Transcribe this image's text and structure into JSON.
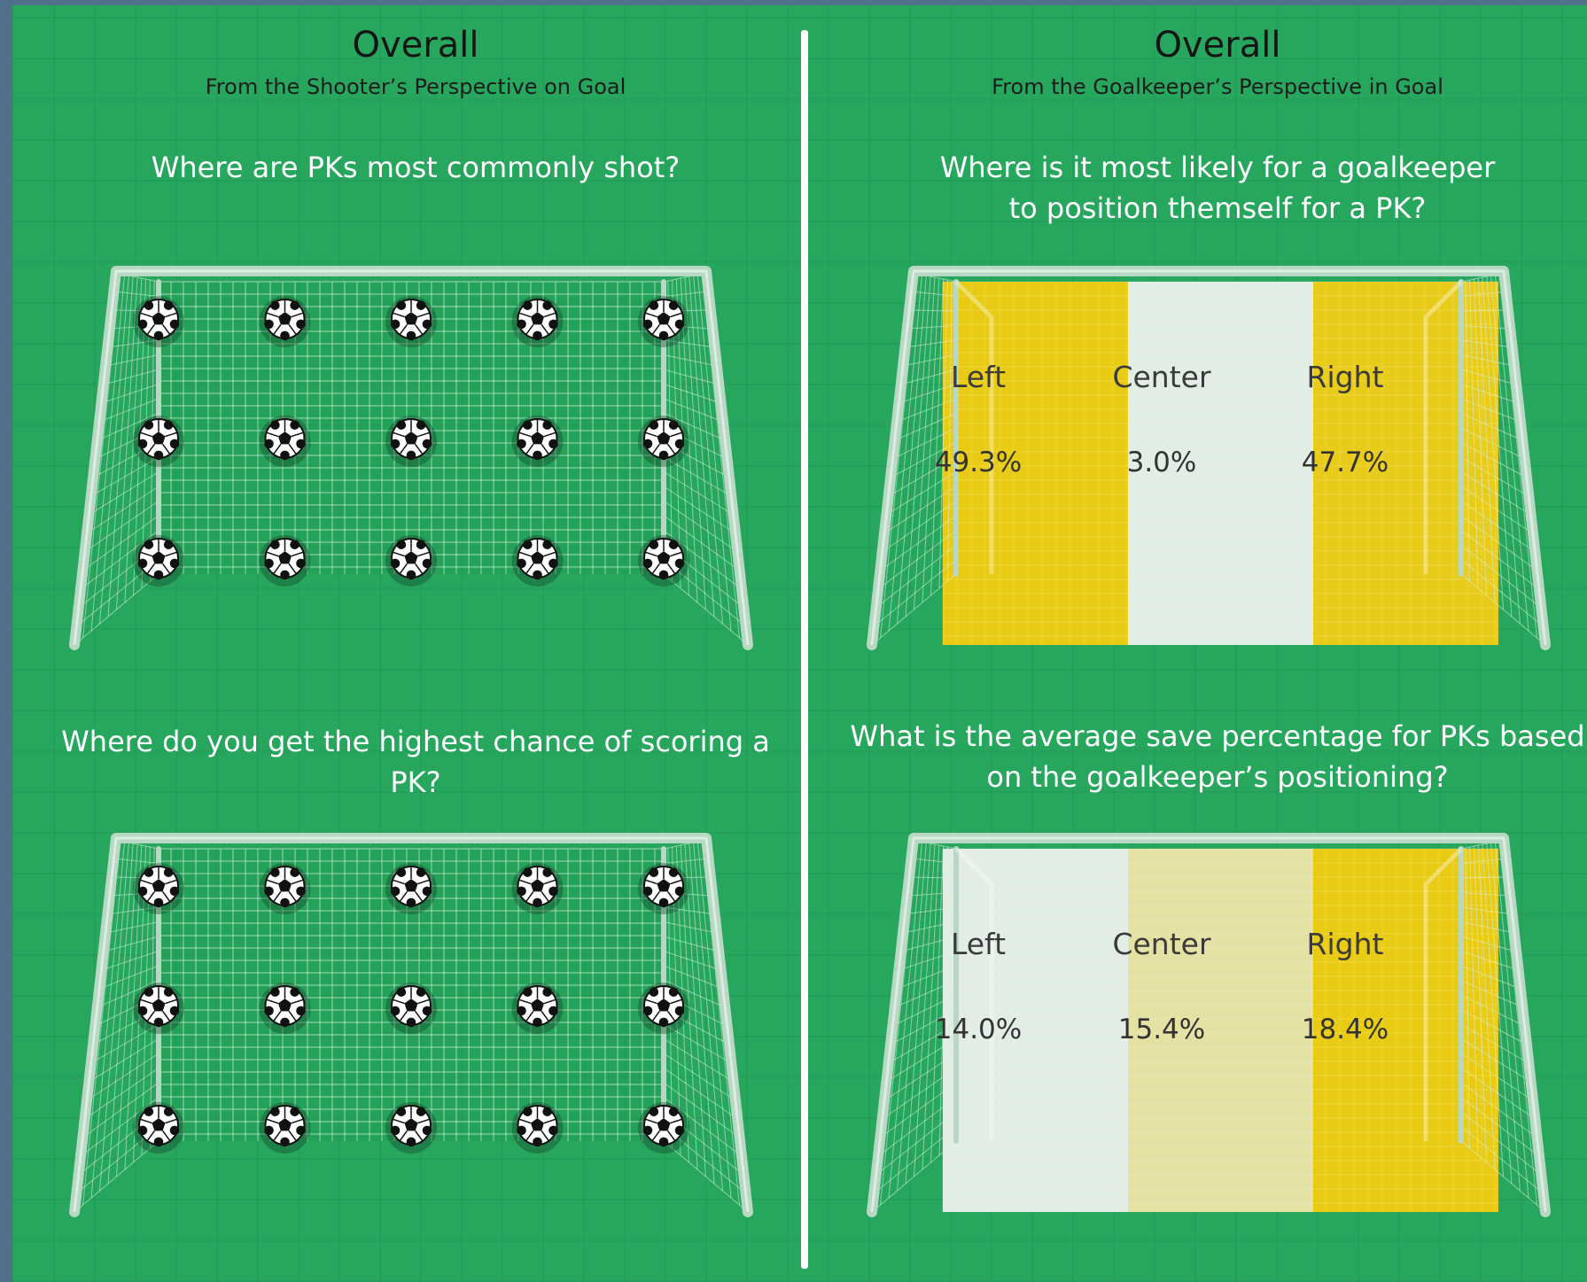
{
  "colors": {
    "field": "#27a75e",
    "divider": "#ffffff",
    "post": "#b8d8c4",
    "net_line": "#d9f1e0",
    "low": "#e2ede6",
    "high": "#e8cb12"
  },
  "left_panel": {
    "title": "Overall",
    "subtitle": "From the Shooter’s Perspective on Goal",
    "q1": "Where are PKs most commonly shot?",
    "q2": "Where do you get the highest chance of scoring a PK?"
  },
  "right_panel": {
    "title": "Overall",
    "subtitle": "From the Goalkeeper’s Perspective in Goal",
    "q1_line1": "Where is it most likely for a goalkeeper",
    "q1_line2": "to position themself for a PK?",
    "q2_line1": "What is the average save percentage for PKs based",
    "q2_line2": "on the goalkeeper’s positioning?"
  },
  "chart_data": [
    {
      "type": "heatmap",
      "title": "Where are PKs most commonly shot?",
      "rows": 3,
      "cols": 5,
      "icon": "soccer-ball-icon",
      "values": null
    },
    {
      "type": "heatmap",
      "title": "Where do you get the highest chance of scoring a PK?",
      "rows": 3,
      "cols": 5,
      "icon": "soccer-ball-icon",
      "values": null
    },
    {
      "type": "heatmap",
      "title": "Where is it most likely for a goalkeeper to position themself for a PK?",
      "categories": [
        "Left",
        "Center",
        "Right"
      ],
      "values": [
        49.3,
        3.0,
        47.7
      ],
      "labels": [
        "49.3%",
        "3.0%",
        "47.7%"
      ]
    },
    {
      "type": "heatmap",
      "title": "What is the average save percentage for PKs based on the goalkeeper’s positioning?",
      "categories": [
        "Left",
        "Center",
        "Right"
      ],
      "values": [
        14.0,
        15.4,
        18.4
      ],
      "labels": [
        "14.0%",
        "15.4%",
        "18.4%"
      ]
    }
  ]
}
